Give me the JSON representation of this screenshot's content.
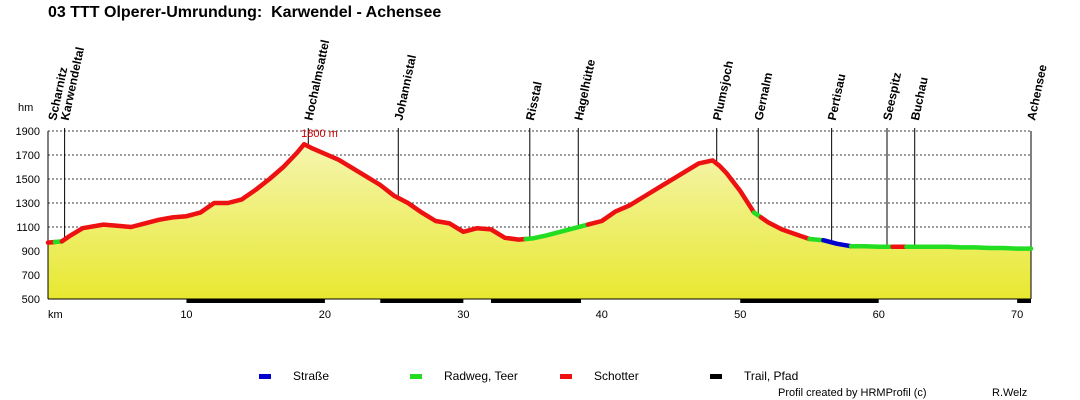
{
  "page": {
    "title": "03 TTT Olperer-Umrundung:  Karwendel - Achensee",
    "credit": "Profil created by HRMProfil (c)",
    "author": "R.Welz"
  },
  "colors": {
    "road": "#0000cc",
    "cycle": "#22dd22",
    "gravel": "#ee1111",
    "trail": "#000000",
    "fill_top": "#f5f5b0",
    "fill_bottom": "#e8e830"
  },
  "chart_data": {
    "type": "area",
    "title": "03 TTT Olperer-Umrundung:  Karwendel - Achensee",
    "xlabel": "km",
    "ylabel": "hm",
    "xlim": [
      0,
      71
    ],
    "ylim": [
      500,
      1900
    ],
    "xticks": [
      10,
      20,
      30,
      40,
      50,
      60,
      70
    ],
    "yticks": [
      500,
      700,
      900,
      1100,
      1300,
      1500,
      1700,
      1900
    ],
    "grid": true,
    "peak_label": {
      "x": 18.5,
      "y": 1800,
      "text": "1800 m"
    },
    "profile": [
      [
        0,
        970
      ],
      [
        1,
        980
      ],
      [
        1.5,
        1020
      ],
      [
        2.5,
        1090
      ],
      [
        4,
        1120
      ],
      [
        5,
        1110
      ],
      [
        6,
        1100
      ],
      [
        7,
        1130
      ],
      [
        8,
        1160
      ],
      [
        9,
        1180
      ],
      [
        10,
        1190
      ],
      [
        11,
        1220
      ],
      [
        12,
        1300
      ],
      [
        13,
        1300
      ],
      [
        14,
        1330
      ],
      [
        15,
        1410
      ],
      [
        16,
        1500
      ],
      [
        17,
        1600
      ],
      [
        18,
        1720
      ],
      [
        18.5,
        1790
      ],
      [
        19,
        1760
      ],
      [
        20,
        1710
      ],
      [
        21,
        1660
      ],
      [
        22,
        1590
      ],
      [
        23,
        1520
      ],
      [
        24,
        1450
      ],
      [
        25,
        1360
      ],
      [
        26,
        1300
      ],
      [
        27,
        1220
      ],
      [
        28,
        1150
      ],
      [
        29,
        1130
      ],
      [
        30,
        1060
      ],
      [
        31,
        1090
      ],
      [
        32,
        1080
      ],
      [
        33,
        1010
      ],
      [
        34,
        995
      ],
      [
        34.5,
        1000
      ],
      [
        35,
        1005
      ],
      [
        36,
        1030
      ],
      [
        37,
        1060
      ],
      [
        38,
        1090
      ],
      [
        39,
        1120
      ],
      [
        40,
        1150
      ],
      [
        41,
        1230
      ],
      [
        42,
        1280
      ],
      [
        43,
        1350
      ],
      [
        44,
        1420
      ],
      [
        45,
        1490
      ],
      [
        46,
        1560
      ],
      [
        47,
        1630
      ],
      [
        48,
        1655
      ],
      [
        48.5,
        1610
      ],
      [
        49,
        1550
      ],
      [
        50,
        1400
      ],
      [
        51,
        1220
      ],
      [
        52,
        1140
      ],
      [
        53,
        1080
      ],
      [
        54,
        1040
      ],
      [
        55,
        1000
      ],
      [
        56,
        990
      ],
      [
        57,
        960
      ],
      [
        58,
        940
      ],
      [
        59,
        940
      ],
      [
        60,
        935
      ],
      [
        61,
        935
      ],
      [
        62,
        935
      ],
      [
        63,
        935
      ],
      [
        64,
        935
      ],
      [
        65,
        935
      ],
      [
        66,
        930
      ],
      [
        67,
        930
      ],
      [
        68,
        925
      ],
      [
        69,
        925
      ],
      [
        70,
        920
      ],
      [
        71,
        920
      ]
    ],
    "segments": [
      {
        "type": "gravel",
        "from": 0,
        "to": 0.5
      },
      {
        "type": "cycle",
        "from": 0.5,
        "to": 1
      },
      {
        "type": "gravel",
        "from": 1,
        "to": 34.5
      },
      {
        "type": "cycle",
        "from": 34.5,
        "to": 39
      },
      {
        "type": "gravel",
        "from": 39,
        "to": 51
      },
      {
        "type": "cycle",
        "from": 51,
        "to": 51.5
      },
      {
        "type": "gravel",
        "from": 51.5,
        "to": 55
      },
      {
        "type": "cycle",
        "from": 55,
        "to": 56
      },
      {
        "type": "road",
        "from": 56,
        "to": 58
      },
      {
        "type": "cycle",
        "from": 58,
        "to": 61
      },
      {
        "type": "gravel",
        "from": 61,
        "to": 62
      },
      {
        "type": "cycle",
        "from": 62,
        "to": 71
      }
    ],
    "trail_sections": [
      [
        10,
        20
      ],
      [
        24,
        30
      ],
      [
        32,
        38.5
      ],
      [
        50,
        60
      ],
      [
        70,
        71
      ]
    ],
    "waypoints": [
      {
        "name": "Scharnitz",
        "km": 0.3,
        "marker": false
      },
      {
        "name": "Karwendeltal",
        "km": 1.2,
        "marker": true
      },
      {
        "name": "Hochalmsattel",
        "km": 18.8,
        "marker": true
      },
      {
        "name": "Johannistal",
        "km": 25.3,
        "marker": true
      },
      {
        "name": "Risstal",
        "km": 34.8,
        "marker": true
      },
      {
        "name": "Hagelhütte",
        "km": 38.3,
        "marker": true
      },
      {
        "name": "Plumsjoch",
        "km": 48.3,
        "marker": true
      },
      {
        "name": "Gernalm",
        "km": 51.3,
        "marker": true
      },
      {
        "name": "Pertisau",
        "km": 56.6,
        "marker": true
      },
      {
        "name": "Seespitz",
        "km": 60.6,
        "marker": true
      },
      {
        "name": "Buchau",
        "km": 62.6,
        "marker": true
      },
      {
        "name": "Achensee",
        "km": 71.0,
        "marker": false
      }
    ],
    "legend": [
      {
        "key": "road",
        "label": "Straße"
      },
      {
        "key": "cycle",
        "label": "Radweg, Teer"
      },
      {
        "key": "gravel",
        "label": "Schotter"
      },
      {
        "key": "trail",
        "label": "Trail, Pfad"
      }
    ]
  }
}
